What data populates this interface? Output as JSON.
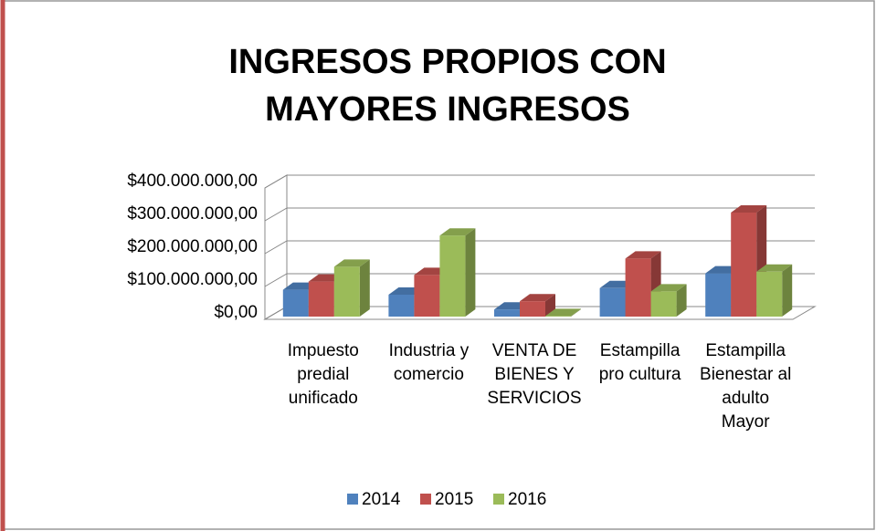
{
  "chart_data": {
    "type": "bar3d",
    "title": "INGRESOS PROPIOS CON MAYORES INGRESOS",
    "categories": [
      "Impuesto predial unificado",
      "Industria y comercio",
      "VENTA DE BIENES Y SERVICIOS",
      "Estampilla pro cultura",
      "Estampilla Bienestar al adulto Mayor"
    ],
    "series": [
      {
        "name": "2014",
        "color": "#4f81bd",
        "values": [
          90000000,
          75000000,
          30000000,
          95000000,
          140000000
        ]
      },
      {
        "name": "2015",
        "color": "#c0504d",
        "values": [
          115000000,
          135000000,
          55000000,
          185000000,
          325000000
        ]
      },
      {
        "name": "2016",
        "color": "#9bbb59",
        "values": [
          160000000,
          255000000,
          10000000,
          85000000,
          145000000
        ]
      }
    ],
    "ylim": [
      0,
      400000000
    ],
    "yticks": [
      {
        "value": 0,
        "label": "$0,00"
      },
      {
        "value": 100000000,
        "label": "$100.000.000,00"
      },
      {
        "value": 200000000,
        "label": "$200.000.000,00"
      },
      {
        "value": 300000000,
        "label": "$300.000.000,00"
      },
      {
        "value": 400000000,
        "label": "$400.000.000,00"
      }
    ],
    "grid": true,
    "legend": "bottom"
  }
}
